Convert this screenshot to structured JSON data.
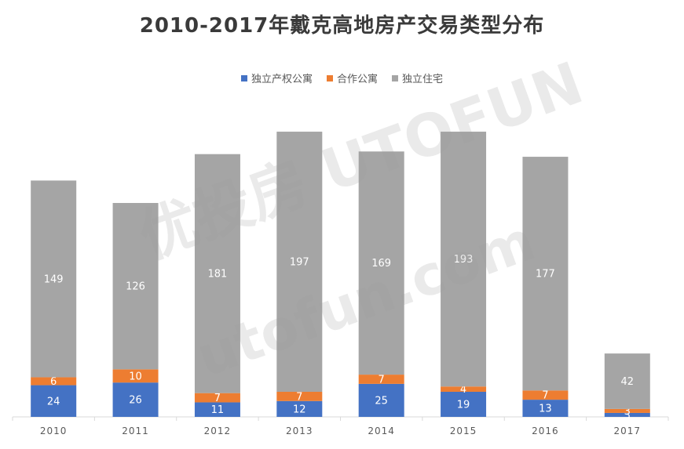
{
  "title": "2010-2017年戴克高地房产交易类型分布",
  "watermark": {
    "line1": "优投房 UTOFUN",
    "line2": "utofun.com"
  },
  "chart_data": {
    "type": "bar",
    "stacked": true,
    "categories": [
      "2010",
      "2011",
      "2012",
      "2013",
      "2014",
      "2015",
      "2016",
      "2017"
    ],
    "series": [
      {
        "name": "独立产权公寓",
        "values": [
          24,
          26,
          11,
          12,
          25,
          19,
          13,
          3
        ],
        "color": "#4472C4"
      },
      {
        "name": "合作公寓",
        "values": [
          6,
          10,
          7,
          7,
          7,
          4,
          7,
          3
        ],
        "color": "#ED7D31"
      },
      {
        "name": "独立住宅",
        "values": [
          149,
          126,
          181,
          197,
          169,
          193,
          177,
          42
        ],
        "color": "#A5A5A5"
      }
    ],
    "legend_position": "top",
    "grid": false
  }
}
